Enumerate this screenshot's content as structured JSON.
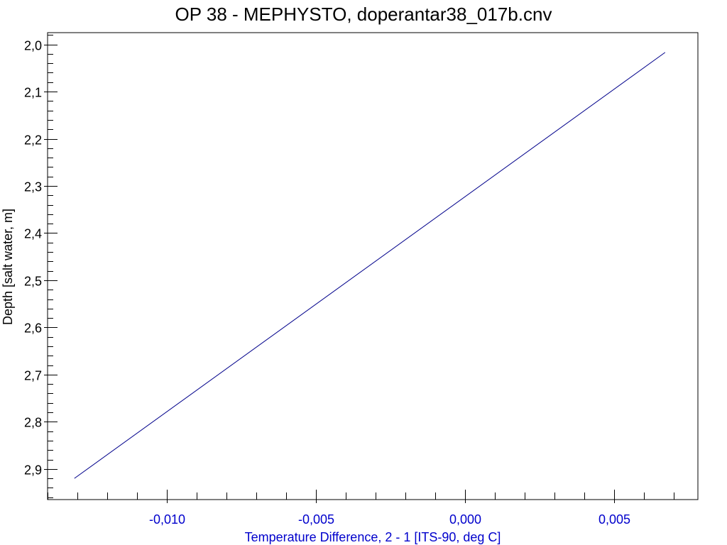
{
  "chart_data": {
    "type": "line",
    "title": "OP 38 - MEPHYSTO, doperantar38_017b.cnv",
    "xlabel": "Temperature Difference, 2 - 1 [ITS-90, deg C]",
    "ylabel": "Depth [salt water, m]",
    "xlim": [
      -0.014,
      0.0078
    ],
    "ylim": [
      1.975,
      2.965
    ],
    "y_inverted": true,
    "x_major_ticks": [
      -0.01,
      -0.005,
      0.0,
      0.005
    ],
    "x_major_tick_labels": [
      "-0,010",
      "-0,005",
      "0,000",
      "0,005"
    ],
    "x_minor_step": 0.001,
    "y_major_ticks": [
      2.0,
      2.1,
      2.2,
      2.3,
      2.4,
      2.5,
      2.6,
      2.7,
      2.8,
      2.9
    ],
    "y_major_tick_labels": [
      "2,0",
      "2,1",
      "2,2",
      "2,3",
      "2,4",
      "2,5",
      "2,6",
      "2,7",
      "2,8",
      "2,9"
    ],
    "y_minor_step": 0.02,
    "grid": false,
    "colors": {
      "x_axis_text": "#0000cc",
      "y_axis_text": "#000000",
      "title_text": "#000000"
    },
    "series": [
      {
        "color": "#00008b",
        "x": [
          -0.0131,
          0.0067
        ],
        "y": [
          2.92,
          2.017
        ]
      }
    ]
  }
}
